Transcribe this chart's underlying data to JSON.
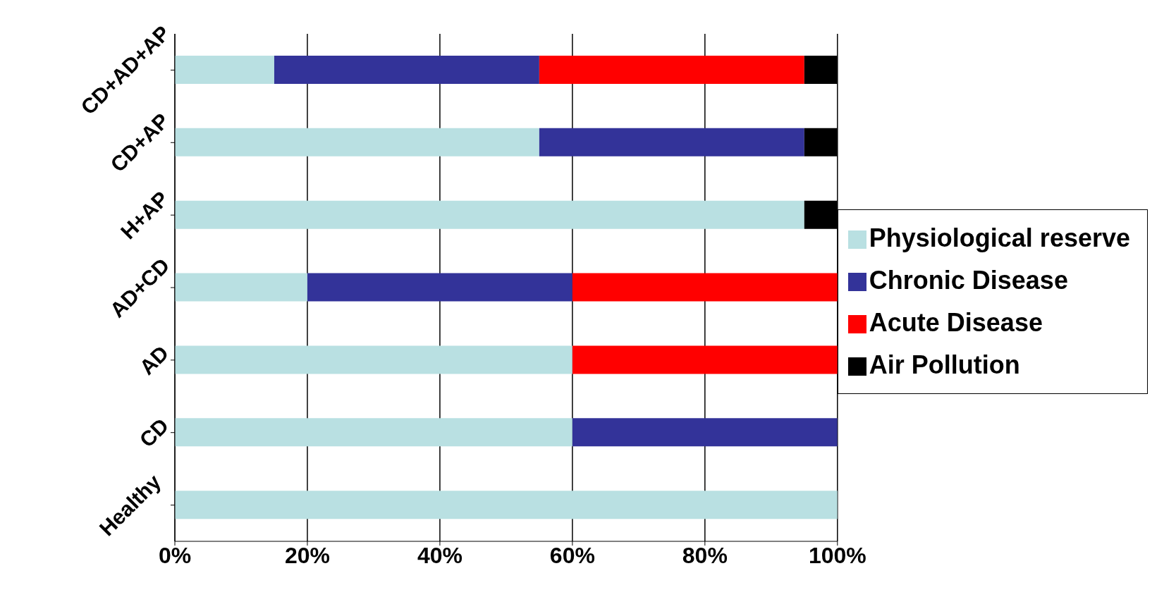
{
  "chart_data": {
    "type": "bar",
    "orientation": "horizontal",
    "stacked": true,
    "categories": [
      "CD+AD+AP",
      "CD+AP",
      "H+AP",
      "AD+CD",
      "AD",
      "CD",
      "Healthy"
    ],
    "series": [
      {
        "name": "Physiological reserve",
        "color": "#b9e0e2",
        "values": [
          15,
          55,
          95,
          20,
          60,
          60,
          100
        ]
      },
      {
        "name": "Chronic Disease",
        "color": "#333399",
        "values": [
          40,
          40,
          0,
          40,
          0,
          40,
          0
        ]
      },
      {
        "name": "Acute Disease",
        "color": "#ff0000",
        "values": [
          40,
          0,
          0,
          40,
          40,
          0,
          0
        ]
      },
      {
        "name": "Air Pollution",
        "color": "#000000",
        "values": [
          5,
          5,
          5,
          0,
          0,
          0,
          0
        ]
      }
    ],
    "xlim": [
      0,
      100
    ],
    "xticks": [
      {
        "value": 0,
        "label": "0%"
      },
      {
        "value": 20,
        "label": "20%"
      },
      {
        "value": 40,
        "label": "40%"
      },
      {
        "value": 60,
        "label": "60%"
      },
      {
        "value": 80,
        "label": "80%"
      },
      {
        "value": 100,
        "label": "100%"
      }
    ],
    "grid": "x",
    "legend": "right"
  }
}
